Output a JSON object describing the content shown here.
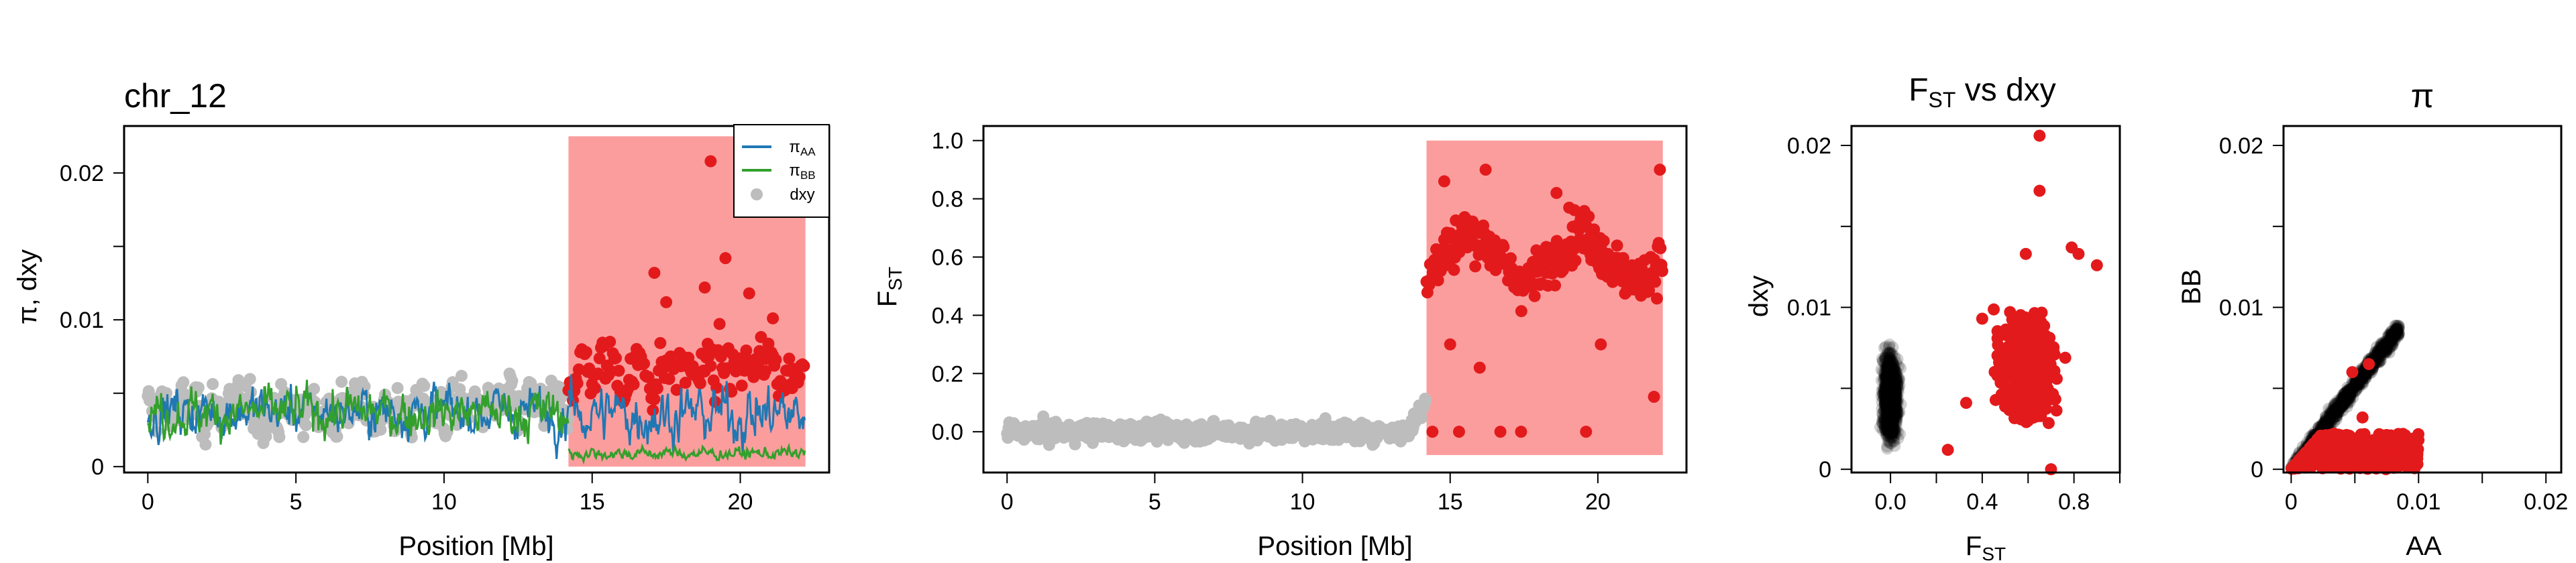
{
  "colors": {
    "pi_aa": "#1f78b4",
    "pi_bb": "#33a02c",
    "dxy_background": "#bdbdbd",
    "highlight": "#e31a1c",
    "highlight_region": "#fc9d9d",
    "cloud": "#000000"
  },
  "chart_data": [
    {
      "type": "line",
      "title": "chr_12",
      "xlabel": "Position [Mb]",
      "ylabel": "π, dxy",
      "xlim": [
        -0.8,
        23
      ],
      "ylim": [
        -0.0004,
        0.0232
      ],
      "xticks": [
        0,
        5,
        10,
        15,
        20
      ],
      "yticks": [
        0,
        0.005,
        0.01,
        0.015,
        0.02
      ],
      "ytick_labels": {
        "0": "0",
        "0.01": "0.01",
        "0.02": "0.02"
      },
      "highlight_region": {
        "x": [
          14.2,
          22.2
        ],
        "y": [
          0,
          0.0225
        ]
      },
      "legend": {
        "placement": "top-right",
        "entries": [
          {
            "main": "π",
            "sub": "AA",
            "kind": "line",
            "color_key": "pi_aa"
          },
          {
            "main": "π",
            "sub": "BB",
            "kind": "line",
            "color_key": "pi_bb"
          },
          {
            "main": "dxy",
            "sub": "",
            "kind": "point",
            "color_key": "dxy_background"
          }
        ]
      },
      "series": [
        {
          "name": "πAA",
          "pattern": "window_series",
          "low_x": [
            0,
            14.2
          ],
          "low_mean": 0.0038,
          "low_amp": 0.0026,
          "high_x": [
            14.2,
            22.2
          ],
          "high_mean": 0.0036,
          "high_amp": 0.0032
        },
        {
          "name": "πBB",
          "pattern": "window_series",
          "low_x": [
            0,
            14.2
          ],
          "low_mean": 0.0037,
          "low_amp": 0.0026,
          "high_x": [
            14.2,
            22.2
          ],
          "high_mean": 0.0009,
          "high_amp": 0.0007
        },
        {
          "name": "dxy",
          "pattern": "window_points",
          "low_x": [
            0,
            14.2
          ],
          "low_mean": 0.0039,
          "low_amp": 0.0028,
          "high_x": [
            14.2,
            22.2
          ],
          "high_mean": 0.0066,
          "high_amp": 0.0036,
          "highlight_outliers": [
            [
              15.6,
              0.0085
            ],
            [
              17.1,
              0.0132
            ],
            [
              17.5,
              0.0112
            ],
            [
              19.0,
              0.0208
            ],
            [
              19.5,
              0.0142
            ],
            [
              20.3,
              0.0118
            ],
            [
              18.8,
              0.0122
            ],
            [
              21.1,
              0.0101
            ]
          ]
        }
      ]
    },
    {
      "type": "scatter",
      "title": "",
      "xlabel": "Position [Mb]",
      "ylabel": "F",
      "ylabel_sub": "ST",
      "xlim": [
        -0.8,
        23
      ],
      "ylim": [
        -0.14,
        1.05
      ],
      "xticks": [
        0,
        5,
        10,
        15,
        20
      ],
      "yticks": [
        0,
        0.2,
        0.4,
        0.6,
        0.8,
        1
      ],
      "ytick_labels": {
        "0": "0.0",
        "0.2": "0.2",
        "0.4": "0.4",
        "0.6": "0.6",
        "0.8": "0.8",
        "1": "1.0"
      },
      "highlight_region": {
        "x": [
          14.2,
          22.2
        ],
        "y": [
          -0.08,
          1.0
        ]
      },
      "series": [
        {
          "name": "FST background",
          "pattern": "fst_points",
          "x_range": [
            0,
            14.2
          ],
          "mean": 0.0,
          "spread": 0.05,
          "color_key": "dxy_background"
        },
        {
          "name": "FST island",
          "pattern": "fst_points",
          "x_range": [
            14.2,
            22.2
          ],
          "mean": 0.6,
          "spread": 0.11,
          "color_key": "highlight",
          "extra": [
            [
              14.4,
              0.0
            ],
            [
              15.3,
              0.0
            ],
            [
              16.7,
              0.0
            ],
            [
              17.4,
              0.0
            ],
            [
              19.6,
              0.0
            ],
            [
              21.9,
              0.12
            ],
            [
              14.8,
              0.86
            ],
            [
              16.2,
              0.9
            ],
            [
              22.1,
              0.9
            ],
            [
              18.6,
              0.82
            ],
            [
              15.0,
              0.3
            ],
            [
              16.0,
              0.22
            ],
            [
              20.1,
              0.3
            ]
          ]
        }
      ]
    },
    {
      "type": "scatter",
      "title": "F",
      "title_sub": "ST",
      "title_suffix": " vs dxy",
      "xlabel": "F",
      "xlabel_sub": "ST",
      "ylabel": "dxy",
      "xlim": [
        -0.17,
        1.0
      ],
      "ylim": [
        -0.0002,
        0.0212
      ],
      "xticks": [
        0,
        0.2,
        0.4,
        0.6,
        0.8,
        1
      ],
      "xtick_labels": {
        "0": "0.0",
        "0.4": "0.4",
        "0.8": "0.8"
      },
      "yticks": [
        0,
        0.005,
        0.01,
        0.015,
        0.02
      ],
      "ytick_labels": {
        "0": "0",
        "0.01": "0.01",
        "0.02": "0.02"
      },
      "series": [
        {
          "name": "background windows",
          "pattern": "cloud",
          "center": [
            0.0,
            0.0045
          ],
          "spread": [
            0.03,
            0.0022
          ],
          "color_key": "cloud"
        },
        {
          "name": "island windows",
          "pattern": "cloud",
          "center": [
            0.6,
            0.0063
          ],
          "spread": [
            0.11,
            0.0026
          ],
          "color_key": "highlight",
          "extra": [
            [
              0.65,
              0.0206
            ],
            [
              0.65,
              0.0172
            ],
            [
              0.79,
              0.0137
            ],
            [
              0.82,
              0.0133
            ],
            [
              0.59,
              0.0133
            ],
            [
              0.9,
              0.0126
            ],
            [
              0.4,
              0.0093
            ],
            [
              0.25,
              0.0012
            ],
            [
              0.33,
              0.0041
            ],
            [
              0.7,
              0.0
            ]
          ]
        }
      ]
    },
    {
      "type": "scatter",
      "title": "π",
      "xlabel": "AA",
      "ylabel": "BB",
      "xlim": [
        -0.0006,
        0.0212
      ],
      "ylim": [
        -0.0002,
        0.0212
      ],
      "xticks": [
        0,
        0.005,
        0.01,
        0.015,
        0.02
      ],
      "xtick_labels": {
        "0": "0",
        "0.01": "0.01",
        "0.02": "0.02"
      },
      "yticks": [
        0,
        0.005,
        0.01,
        0.015,
        0.02
      ],
      "ytick_labels": {
        "0": "0",
        "0.01": "0.01",
        "0.02": "0.02"
      },
      "series": [
        {
          "name": "background windows",
          "pattern": "diagonal",
          "x_range": [
            0,
            0.0085
          ],
          "color_key": "cloud"
        },
        {
          "name": "island windows",
          "pattern": "flat",
          "x_range": [
            0,
            0.01
          ],
          "y_range": [
            0,
            0.0022
          ],
          "color_key": "highlight",
          "extra": [
            [
              0.0048,
              0.006
            ],
            [
              0.0061,
              0.0065
            ],
            [
              0.0056,
              0.0032
            ]
          ]
        }
      ]
    }
  ]
}
